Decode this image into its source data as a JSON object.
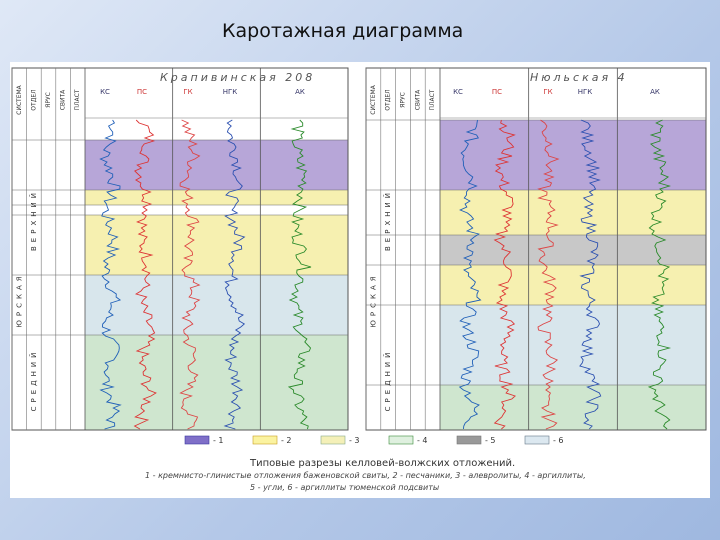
{
  "header": {
    "title": "Каротажная диаграмма"
  },
  "figure": {
    "wells": [
      {
        "name": "Крапивинская 208",
        "curves": [
          "КС",
          "ПС",
          "ГК",
          "НГК",
          "АК"
        ],
        "columns": [
          "СИСТЕМА",
          "ОТДЕЛ",
          "ЯРУС",
          "СВИТА",
          "ПЛАСТ"
        ],
        "strata": [
          "ЮРСКАЯ",
          "ВЕРХНИЙ",
          "СРЕДНИЙ"
        ]
      },
      {
        "name": "Нюльская 4",
        "curves": [
          "КС",
          "ПС",
          "ГК",
          "НГК",
          "АК"
        ],
        "columns": [
          "СИСТЕМА",
          "ОТДЕЛ",
          "ЯРУС",
          "СВИТА",
          "ПЛАСТ"
        ],
        "strata": [
          "ЮРСКАЯ",
          "ВЕРХНИЙ",
          "СРЕДНИЙ"
        ]
      }
    ],
    "legend": [
      "- 1",
      "- 2",
      "- 3",
      "- 4",
      "- 5",
      "- 6"
    ],
    "caption": [
      "Типовые разрезы келловей-волжских отложений.",
      "1 - кремнисто-глинистые отложения баженовской свиты, 2 - песчаники, 3 - алевролиты, 4 - аргиллиты,",
      "5 - угли, 6 - аргиллиты тюменской подсвиты"
    ]
  }
}
